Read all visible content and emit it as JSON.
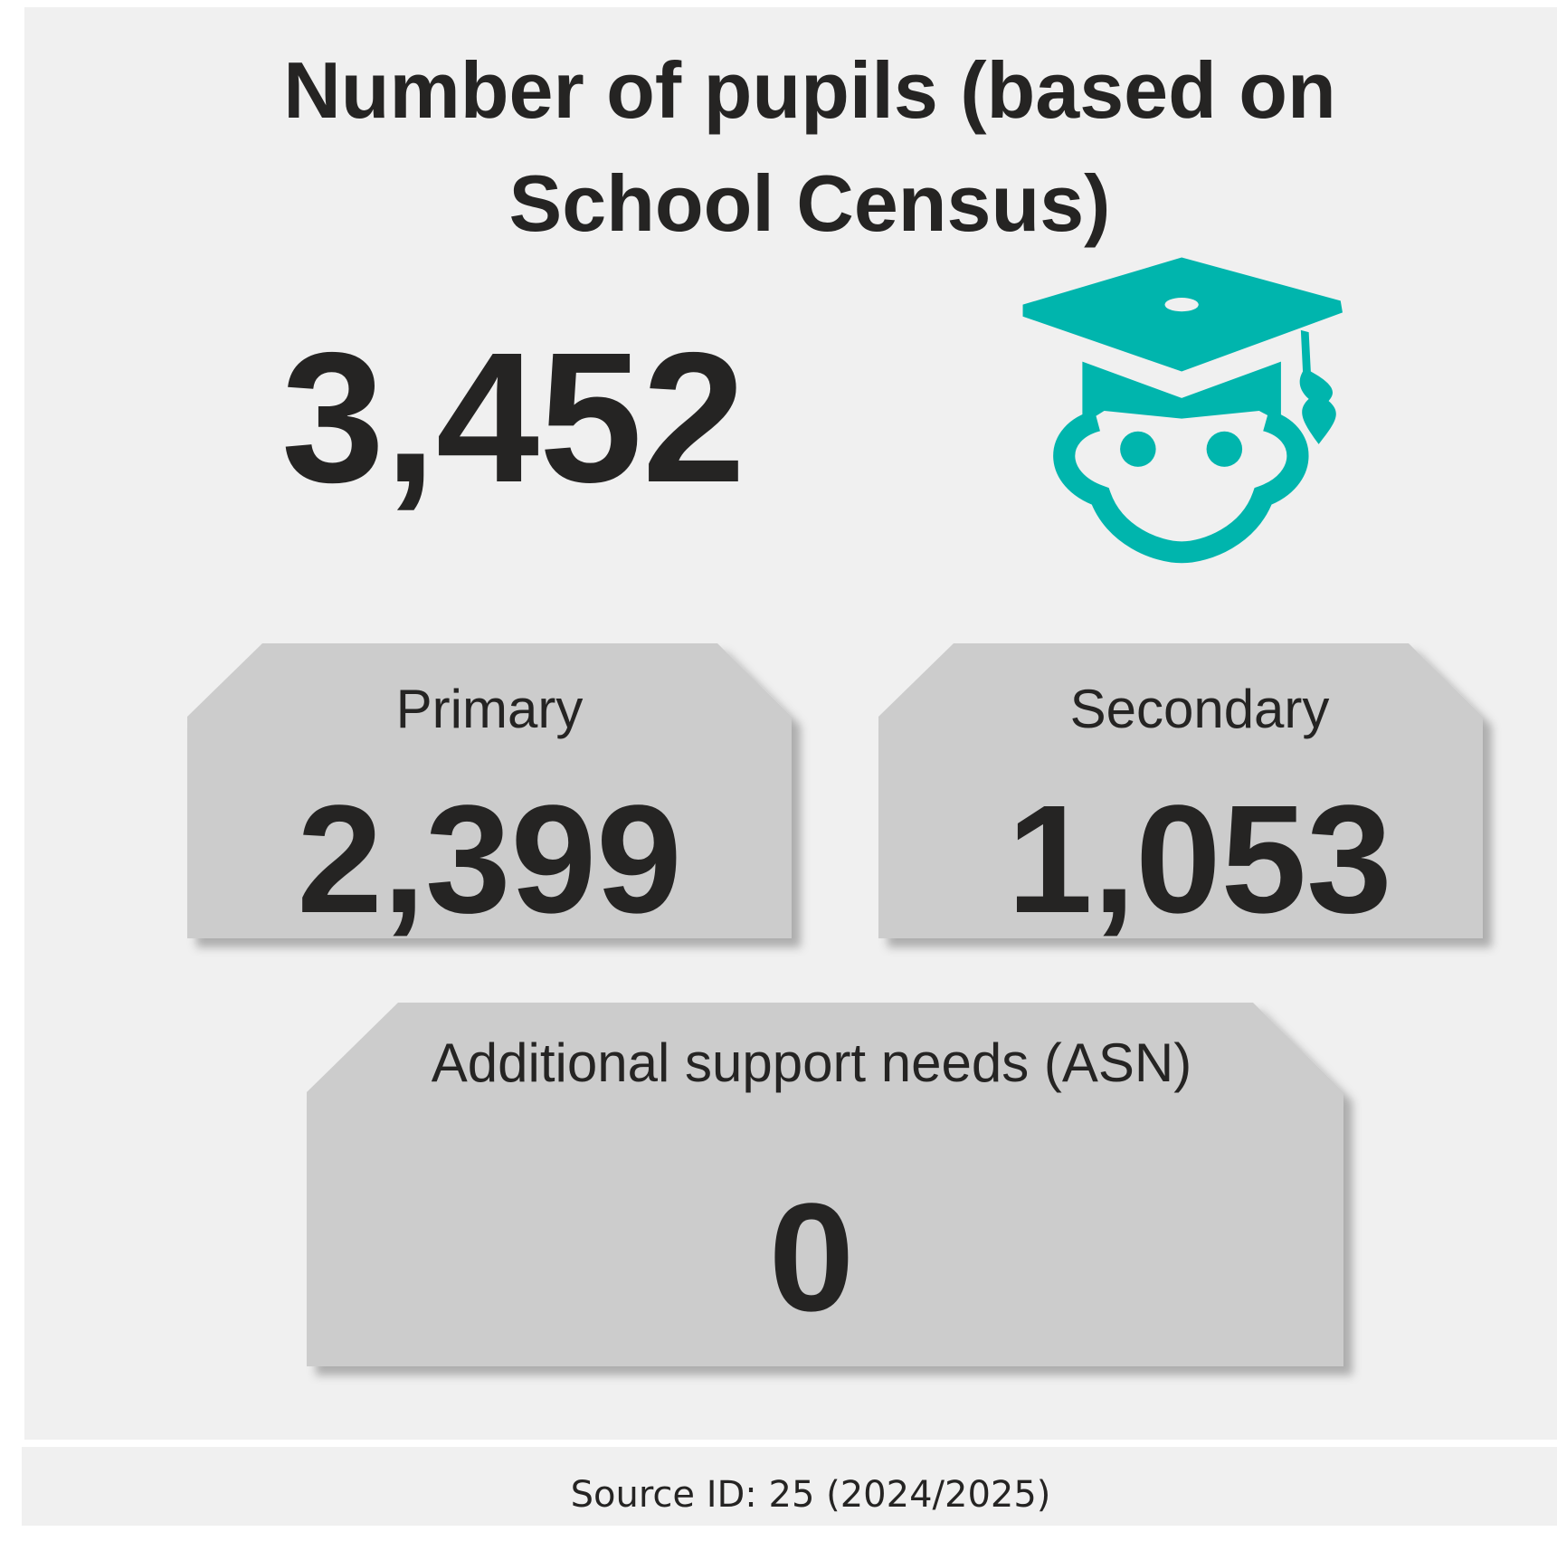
{
  "title_lines": [
    "Number of pupils (based on",
    "School Census)"
  ],
  "total": "3,452",
  "cards": [
    {
      "label": "Primary",
      "value": "2,399"
    },
    {
      "label": "Secondary",
      "value": "1,053"
    },
    {
      "label": "Additional support needs (ASN)",
      "value": "0"
    }
  ],
  "footer": "Source ID: 25 (2024/2025)"
}
